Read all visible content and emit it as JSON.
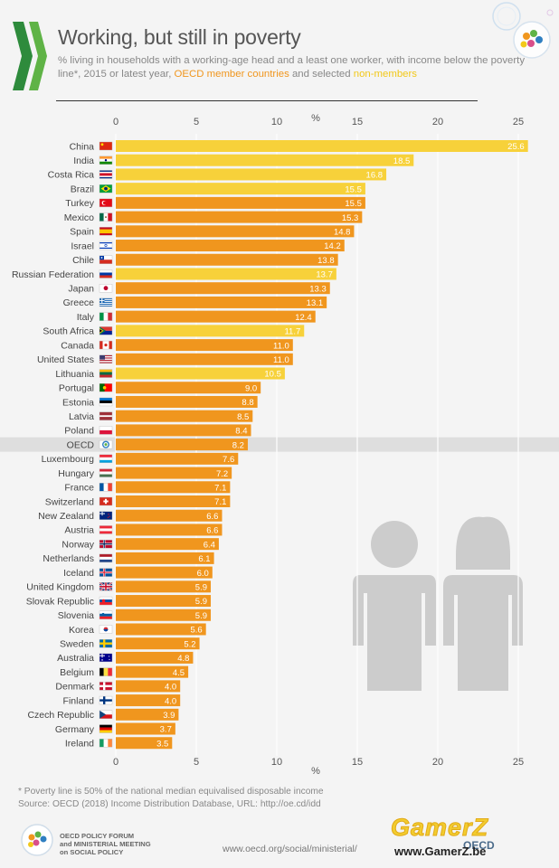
{
  "title": "Working, but still in poverty",
  "subtitle": {
    "prefix": "% living in households with a working-age head and a least one worker, with income below the poverty line*, 2015 or latest year,",
    "member_label": "OECD member countries",
    "joiner": "and selected",
    "nonmember_label": "non-members"
  },
  "footnote": {
    "line1": "* Poverty line is 50% of the national median equivalised disposable income",
    "line2": "Source: OECD (2018) Income Distribution Database, URL: http://oe.cd/idd"
  },
  "footer": {
    "forum_line1": "OECD POLICY FORUM",
    "forum_line2": "and MINISTERIAL MEETING",
    "forum_line3": "on SOCIAL POLICY",
    "url": "www.oecd.org/social/ministerial/",
    "oecd_mark": "OECD"
  },
  "watermark": {
    "brand": "GamerZ",
    "url": "www.GamerZ.be"
  },
  "colors": {
    "member": "#f0961e",
    "nonmember": "#f7d13a",
    "label": "#ffffff",
    "highlight_band": "#dedede",
    "grid": "#ffffff",
    "figure": "#cccccc"
  },
  "chart_data": {
    "type": "bar",
    "orientation": "horizontal",
    "unit_label": "%",
    "xlim": [
      0,
      25
    ],
    "xticks": [
      0,
      5,
      10,
      15,
      20,
      25
    ],
    "grid": true,
    "highlight_category": "OECD",
    "series": [
      {
        "name": "OECD member countries",
        "color": "#f0961e"
      },
      {
        "name": "non-members",
        "color": "#f7d13a"
      }
    ],
    "bars": [
      {
        "country": "China",
        "value": 25.6,
        "label": "25.6",
        "group": "non-member",
        "flag": "cn"
      },
      {
        "country": "India",
        "value": 18.5,
        "label": "18.5",
        "group": "non-member",
        "flag": "in"
      },
      {
        "country": "Costa Rica",
        "value": 16.8,
        "label": "16.8",
        "group": "non-member",
        "flag": "cr"
      },
      {
        "country": "Brazil",
        "value": 15.5,
        "label": "15.5",
        "group": "non-member",
        "flag": "br"
      },
      {
        "country": "Turkey",
        "value": 15.5,
        "label": "15.5",
        "group": "member",
        "flag": "tr"
      },
      {
        "country": "Mexico",
        "value": 15.3,
        "label": "15.3",
        "group": "member",
        "flag": "mx"
      },
      {
        "country": "Spain",
        "value": 14.8,
        "label": "14.8",
        "group": "member",
        "flag": "es"
      },
      {
        "country": "Israel",
        "value": 14.2,
        "label": "14.2",
        "group": "member",
        "flag": "il"
      },
      {
        "country": "Chile",
        "value": 13.8,
        "label": "13.8",
        "group": "member",
        "flag": "cl"
      },
      {
        "country": "Russian Federation",
        "value": 13.7,
        "label": "13.7",
        "group": "non-member",
        "flag": "ru"
      },
      {
        "country": "Japan",
        "value": 13.3,
        "label": "13.3",
        "group": "member",
        "flag": "jp"
      },
      {
        "country": "Greece",
        "value": 13.1,
        "label": "13.1",
        "group": "member",
        "flag": "gr"
      },
      {
        "country": "Italy",
        "value": 12.4,
        "label": "12.4",
        "group": "member",
        "flag": "it"
      },
      {
        "country": "South Africa",
        "value": 11.7,
        "label": "11.7",
        "group": "non-member",
        "flag": "za"
      },
      {
        "country": "Canada",
        "value": 11.0,
        "label": "11.0",
        "group": "member",
        "flag": "ca"
      },
      {
        "country": "United States",
        "value": 11.0,
        "label": "11.0",
        "group": "member",
        "flag": "us"
      },
      {
        "country": "Lithuania",
        "value": 10.5,
        "label": "10.5",
        "group": "non-member",
        "flag": "lt"
      },
      {
        "country": "Portugal",
        "value": 9.0,
        "label": "9.0",
        "group": "member",
        "flag": "pt"
      },
      {
        "country": "Estonia",
        "value": 8.8,
        "label": "8.8",
        "group": "member",
        "flag": "ee"
      },
      {
        "country": "Latvia",
        "value": 8.5,
        "label": "8.5",
        "group": "member",
        "flag": "lv"
      },
      {
        "country": "Poland",
        "value": 8.4,
        "label": "8.4",
        "group": "member",
        "flag": "pl"
      },
      {
        "country": "OECD",
        "value": 8.2,
        "label": "8.2",
        "group": "member",
        "flag": "oecd"
      },
      {
        "country": "Luxembourg",
        "value": 7.6,
        "label": "7.6",
        "group": "member",
        "flag": "lu"
      },
      {
        "country": "Hungary",
        "value": 7.2,
        "label": "7.2",
        "group": "member",
        "flag": "hu"
      },
      {
        "country": "France",
        "value": 7.1,
        "label": "7.1",
        "group": "member",
        "flag": "fr"
      },
      {
        "country": "Switzerland",
        "value": 7.1,
        "label": "7.1",
        "group": "member",
        "flag": "ch"
      },
      {
        "country": "New Zealand",
        "value": 6.6,
        "label": "6.6",
        "group": "member",
        "flag": "nz"
      },
      {
        "country": "Austria",
        "value": 6.6,
        "label": "6.6",
        "group": "member",
        "flag": "at"
      },
      {
        "country": "Norway",
        "value": 6.4,
        "label": "6.4",
        "group": "member",
        "flag": "no"
      },
      {
        "country": "Netherlands",
        "value": 6.1,
        "label": "6.1",
        "group": "member",
        "flag": "nl"
      },
      {
        "country": "Iceland",
        "value": 6.0,
        "label": "6.0",
        "group": "member",
        "flag": "is"
      },
      {
        "country": "United Kingdom",
        "value": 5.9,
        "label": "5.9",
        "group": "member",
        "flag": "gb"
      },
      {
        "country": "Slovak Republic",
        "value": 5.9,
        "label": "5.9",
        "group": "member",
        "flag": "sk"
      },
      {
        "country": "Slovenia",
        "value": 5.9,
        "label": "5.9",
        "group": "member",
        "flag": "si"
      },
      {
        "country": "Korea",
        "value": 5.6,
        "label": "5.6",
        "group": "member",
        "flag": "kr"
      },
      {
        "country": "Sweden",
        "value": 5.2,
        "label": "5.2",
        "group": "member",
        "flag": "se"
      },
      {
        "country": "Australia",
        "value": 4.8,
        "label": "4.8",
        "group": "member",
        "flag": "au"
      },
      {
        "country": "Belgium",
        "value": 4.5,
        "label": "4.5",
        "group": "member",
        "flag": "be"
      },
      {
        "country": "Denmark",
        "value": 4.0,
        "label": "4.0",
        "group": "member",
        "flag": "dk"
      },
      {
        "country": "Finland",
        "value": 4.0,
        "label": "4.0",
        "group": "member",
        "flag": "fi"
      },
      {
        "country": "Czech Republic",
        "value": 3.9,
        "label": "3.9",
        "group": "member",
        "flag": "cz"
      },
      {
        "country": "Germany",
        "value": 3.7,
        "label": "3.7",
        "group": "member",
        "flag": "de"
      },
      {
        "country": "Ireland",
        "value": 3.5,
        "label": "3.5",
        "group": "member",
        "flag": "ie"
      }
    ]
  }
}
